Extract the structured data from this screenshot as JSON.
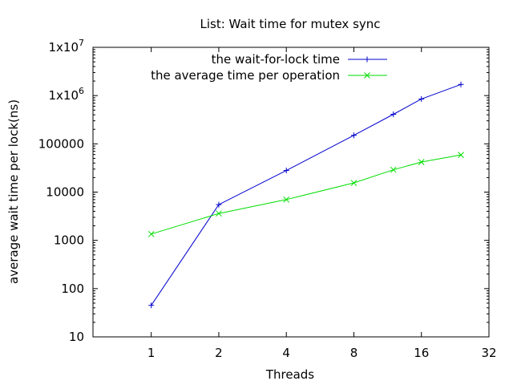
{
  "chart_data": {
    "type": "line",
    "title": "List: Wait time for mutex sync",
    "xlabel": "Threads",
    "ylabel": "average wait time per lock(ns)",
    "x_scale": "log2",
    "y_scale": "log10",
    "xlim": [
      0.55,
      32
    ],
    "ylim": [
      10,
      10000000
    ],
    "grid": false,
    "legend_position": "top-right",
    "x_ticks": [
      {
        "value": 1,
        "label": "1"
      },
      {
        "value": 2,
        "label": "2"
      },
      {
        "value": 4,
        "label": "4"
      },
      {
        "value": 8,
        "label": "8"
      },
      {
        "value": 16,
        "label": "16"
      },
      {
        "value": 32,
        "label": "32"
      }
    ],
    "y_ticks": [
      {
        "value": 10,
        "label": "10",
        "exp": ""
      },
      {
        "value": 100,
        "label": "100",
        "exp": ""
      },
      {
        "value": 1000,
        "label": "1000",
        "exp": ""
      },
      {
        "value": 10000,
        "label": "10000",
        "exp": ""
      },
      {
        "value": 100000,
        "label": "100000",
        "exp": ""
      },
      {
        "value": 1000000,
        "label": "1x10",
        "exp": "6"
      },
      {
        "value": 10000000,
        "label": "1x10",
        "exp": "7"
      }
    ],
    "series": [
      {
        "name": "the wait-for-lock time",
        "color": "#0000cc",
        "marker": "plus",
        "x": [
          1,
          2,
          4,
          8,
          12,
          16,
          24
        ],
        "y": [
          45,
          5500,
          28000,
          150000,
          410000,
          850000,
          1700000
        ]
      },
      {
        "name": "the average time per operation",
        "color": "#00dd00",
        "marker": "cross",
        "x": [
          1,
          2,
          4,
          8,
          12,
          16,
          24
        ],
        "y": [
          1350,
          3600,
          7000,
          15500,
          29000,
          42000,
          59000
        ]
      }
    ]
  }
}
